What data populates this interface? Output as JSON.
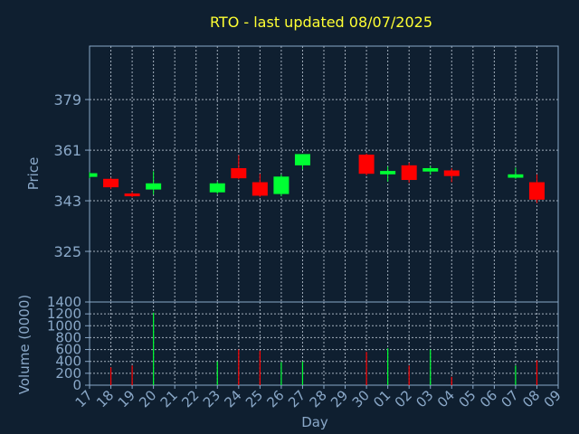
{
  "colors": {
    "background": "#0f1f30",
    "axis": "#8aa8c8",
    "grid": "#c8d4e0",
    "title": "#ffff33",
    "up": "#00ff33",
    "down": "#ff0000"
  },
  "chart_data": [
    {
      "type": "candlestick",
      "title": "RTO - last updated 08/07/2025",
      "ylabel": "Price",
      "ylim": [
        307,
        398
      ],
      "yticks": [
        325,
        343,
        361,
        379
      ],
      "grid": true,
      "x": [
        "17",
        "18",
        "19",
        "20",
        "21",
        "22",
        "23",
        "24",
        "25",
        "26",
        "27",
        "28",
        "29",
        "30",
        "01",
        "02",
        "03",
        "04",
        "05",
        "06",
        "07",
        "08",
        "09"
      ],
      "candles": [
        {
          "day": "17",
          "open": 351.5,
          "close": 352.8,
          "high": 353.2,
          "low": 351.0,
          "dir": "up"
        },
        {
          "day": "18",
          "open": 350.8,
          "close": 347.8,
          "high": 351.2,
          "low": 347.2,
          "dir": "down"
        },
        {
          "day": "19",
          "open": 345.6,
          "close": 344.6,
          "high": 346.2,
          "low": 344.2,
          "dir": "down"
        },
        {
          "day": "20",
          "open": 347.0,
          "close": 349.2,
          "high": 353.5,
          "low": 345.2,
          "dir": "up"
        },
        {
          "day": "23",
          "open": 346.0,
          "close": 349.2,
          "high": 349.8,
          "low": 345.4,
          "dir": "up"
        },
        {
          "day": "24",
          "open": 354.6,
          "close": 351.0,
          "high": 359.2,
          "low": 350.6,
          "dir": "down"
        },
        {
          "day": "25",
          "open": 349.6,
          "close": 344.8,
          "high": 352.6,
          "low": 344.4,
          "dir": "down"
        },
        {
          "day": "26",
          "open": 345.4,
          "close": 351.6,
          "high": 352.4,
          "low": 344.6,
          "dir": "up"
        },
        {
          "day": "27",
          "open": 355.6,
          "close": 359.6,
          "high": 359.6,
          "low": 354.2,
          "dir": "up"
        },
        {
          "day": "30",
          "open": 359.4,
          "close": 352.6,
          "high": 359.8,
          "low": 352.0,
          "dir": "down"
        },
        {
          "day": "01",
          "open": 352.4,
          "close": 353.6,
          "high": 355.2,
          "low": 349.8,
          "dir": "up"
        },
        {
          "day": "02",
          "open": 355.6,
          "close": 350.4,
          "high": 356.6,
          "low": 349.4,
          "dir": "down"
        },
        {
          "day": "03",
          "open": 353.4,
          "close": 354.6,
          "high": 355.4,
          "low": 352.2,
          "dir": "up"
        },
        {
          "day": "04",
          "open": 353.8,
          "close": 351.8,
          "high": 354.6,
          "low": 349.6,
          "dir": "down"
        },
        {
          "day": "07",
          "open": 351.2,
          "close": 352.4,
          "high": 354.8,
          "low": 350.8,
          "dir": "up"
        },
        {
          "day": "08",
          "open": 349.6,
          "close": 343.4,
          "high": 352.4,
          "low": 342.2,
          "dir": "down"
        }
      ]
    },
    {
      "type": "bar",
      "ylabel": "Volume (0000)",
      "xlabel": "Day",
      "ylim": [
        0,
        1400
      ],
      "yticks": [
        0,
        200,
        400,
        600,
        800,
        1000,
        1200,
        1400
      ],
      "grid": true,
      "categories": [
        "17",
        "18",
        "19",
        "20",
        "21",
        "22",
        "23",
        "24",
        "25",
        "26",
        "27",
        "28",
        "29",
        "30",
        "01",
        "02",
        "03",
        "04",
        "05",
        "06",
        "07",
        "08",
        "09"
      ],
      "volumes": [
        {
          "day": "17",
          "value": 0,
          "dir": "up"
        },
        {
          "day": "18",
          "value": 300,
          "dir": "down"
        },
        {
          "day": "19",
          "value": 330,
          "dir": "down"
        },
        {
          "day": "20",
          "value": 1220,
          "dir": "up"
        },
        {
          "day": "23",
          "value": 400,
          "dir": "up"
        },
        {
          "day": "24",
          "value": 600,
          "dir": "down"
        },
        {
          "day": "25",
          "value": 580,
          "dir": "down"
        },
        {
          "day": "26",
          "value": 390,
          "dir": "up"
        },
        {
          "day": "27",
          "value": 400,
          "dir": "up"
        },
        {
          "day": "30",
          "value": 560,
          "dir": "down"
        },
        {
          "day": "01",
          "value": 620,
          "dir": "up"
        },
        {
          "day": "02",
          "value": 330,
          "dir": "down"
        },
        {
          "day": "03",
          "value": 600,
          "dir": "up"
        },
        {
          "day": "04",
          "value": 140,
          "dir": "down"
        },
        {
          "day": "07",
          "value": 330,
          "dir": "up"
        },
        {
          "day": "08",
          "value": 420,
          "dir": "down"
        }
      ]
    }
  ]
}
